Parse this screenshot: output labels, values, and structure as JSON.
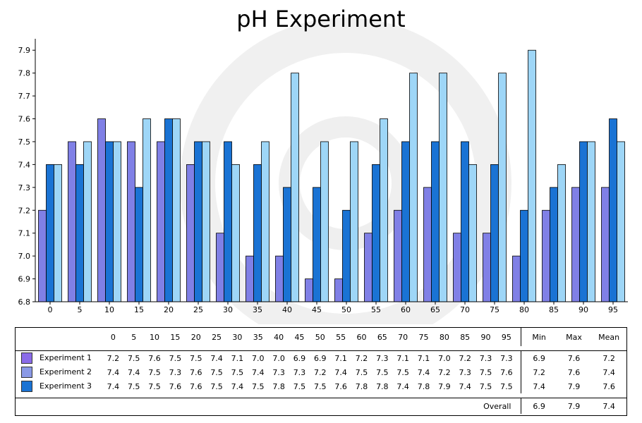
{
  "chart_data": {
    "type": "bar",
    "title": "pH Experiment",
    "categories": [
      "0",
      "5",
      "10",
      "15",
      "20",
      "25",
      "30",
      "35",
      "40",
      "45",
      "50",
      "55",
      "60",
      "65",
      "70",
      "75",
      "80",
      "85",
      "90",
      "95"
    ],
    "series": [
      {
        "name": "Experiment 1",
        "color": "#8080e6",
        "values": [
          7.2,
          7.5,
          7.6,
          7.5,
          7.5,
          7.4,
          7.1,
          7.0,
          7.0,
          6.9,
          6.9,
          7.1,
          7.2,
          7.3,
          7.1,
          7.1,
          7.0,
          7.2,
          7.3,
          7.3
        ]
      },
      {
        "name": "Experiment 2",
        "color": "#1a73d4",
        "values": [
          7.4,
          7.4,
          7.5,
          7.3,
          7.6,
          7.5,
          7.5,
          7.4,
          7.3,
          7.3,
          7.2,
          7.4,
          7.5,
          7.5,
          7.5,
          7.4,
          7.2,
          7.3,
          7.5,
          7.6
        ]
      },
      {
        "name": "Experiment 3",
        "color": "#9ed6f7",
        "values": [
          7.4,
          7.5,
          7.5,
          7.6,
          7.6,
          7.5,
          7.4,
          7.5,
          7.8,
          7.5,
          7.5,
          7.6,
          7.8,
          7.8,
          7.4,
          7.8,
          7.9,
          7.4,
          7.5,
          7.5
        ]
      }
    ],
    "ylim": [
      6.8,
      7.95
    ],
    "yticks": [
      "6.8",
      "6.9",
      "7.0",
      "7.1",
      "7.2",
      "7.3",
      "7.4",
      "7.5",
      "7.6",
      "7.7",
      "7.8",
      "7.9"
    ],
    "table": {
      "legend_swatch_colors": [
        "#8a6be8",
        "#8a99e6",
        "#1a73d4"
      ],
      "stat_headers": [
        "Min",
        "Max",
        "Mean"
      ],
      "rows": [
        {
          "label": "Experiment 1",
          "values": [
            "7.2",
            "7.5",
            "7.6",
            "7.5",
            "7.5",
            "7.4",
            "7.1",
            "7.0",
            "7.0",
            "6.9",
            "6.9",
            "7.1",
            "7.2",
            "7.3",
            "7.1",
            "7.1",
            "7.0",
            "7.2",
            "7.3",
            "7.3"
          ],
          "min": "6.9",
          "max": "7.6",
          "mean": "7.2"
        },
        {
          "label": "Experiment 2",
          "values": [
            "7.4",
            "7.4",
            "7.5",
            "7.3",
            "7.6",
            "7.5",
            "7.5",
            "7.4",
            "7.3",
            "7.3",
            "7.2",
            "7.4",
            "7.5",
            "7.5",
            "7.5",
            "7.4",
            "7.2",
            "7.3",
            "7.5",
            "7.6"
          ],
          "min": "7.2",
          "max": "7.6",
          "mean": "7.4"
        },
        {
          "label": "Experiment 3",
          "values": [
            "7.4",
            "7.5",
            "7.5",
            "7.6",
            "7.6",
            "7.5",
            "7.4",
            "7.5",
            "7.8",
            "7.5",
            "7.5",
            "7.6",
            "7.8",
            "7.8",
            "7.4",
            "7.8",
            "7.9",
            "7.4",
            "7.5",
            "7.5"
          ],
          "min": "7.4",
          "max": "7.9",
          "mean": "7.6"
        }
      ],
      "overall_label": "Overall",
      "overall": {
        "min": "6.9",
        "max": "7.9",
        "mean": "7.4"
      }
    }
  }
}
